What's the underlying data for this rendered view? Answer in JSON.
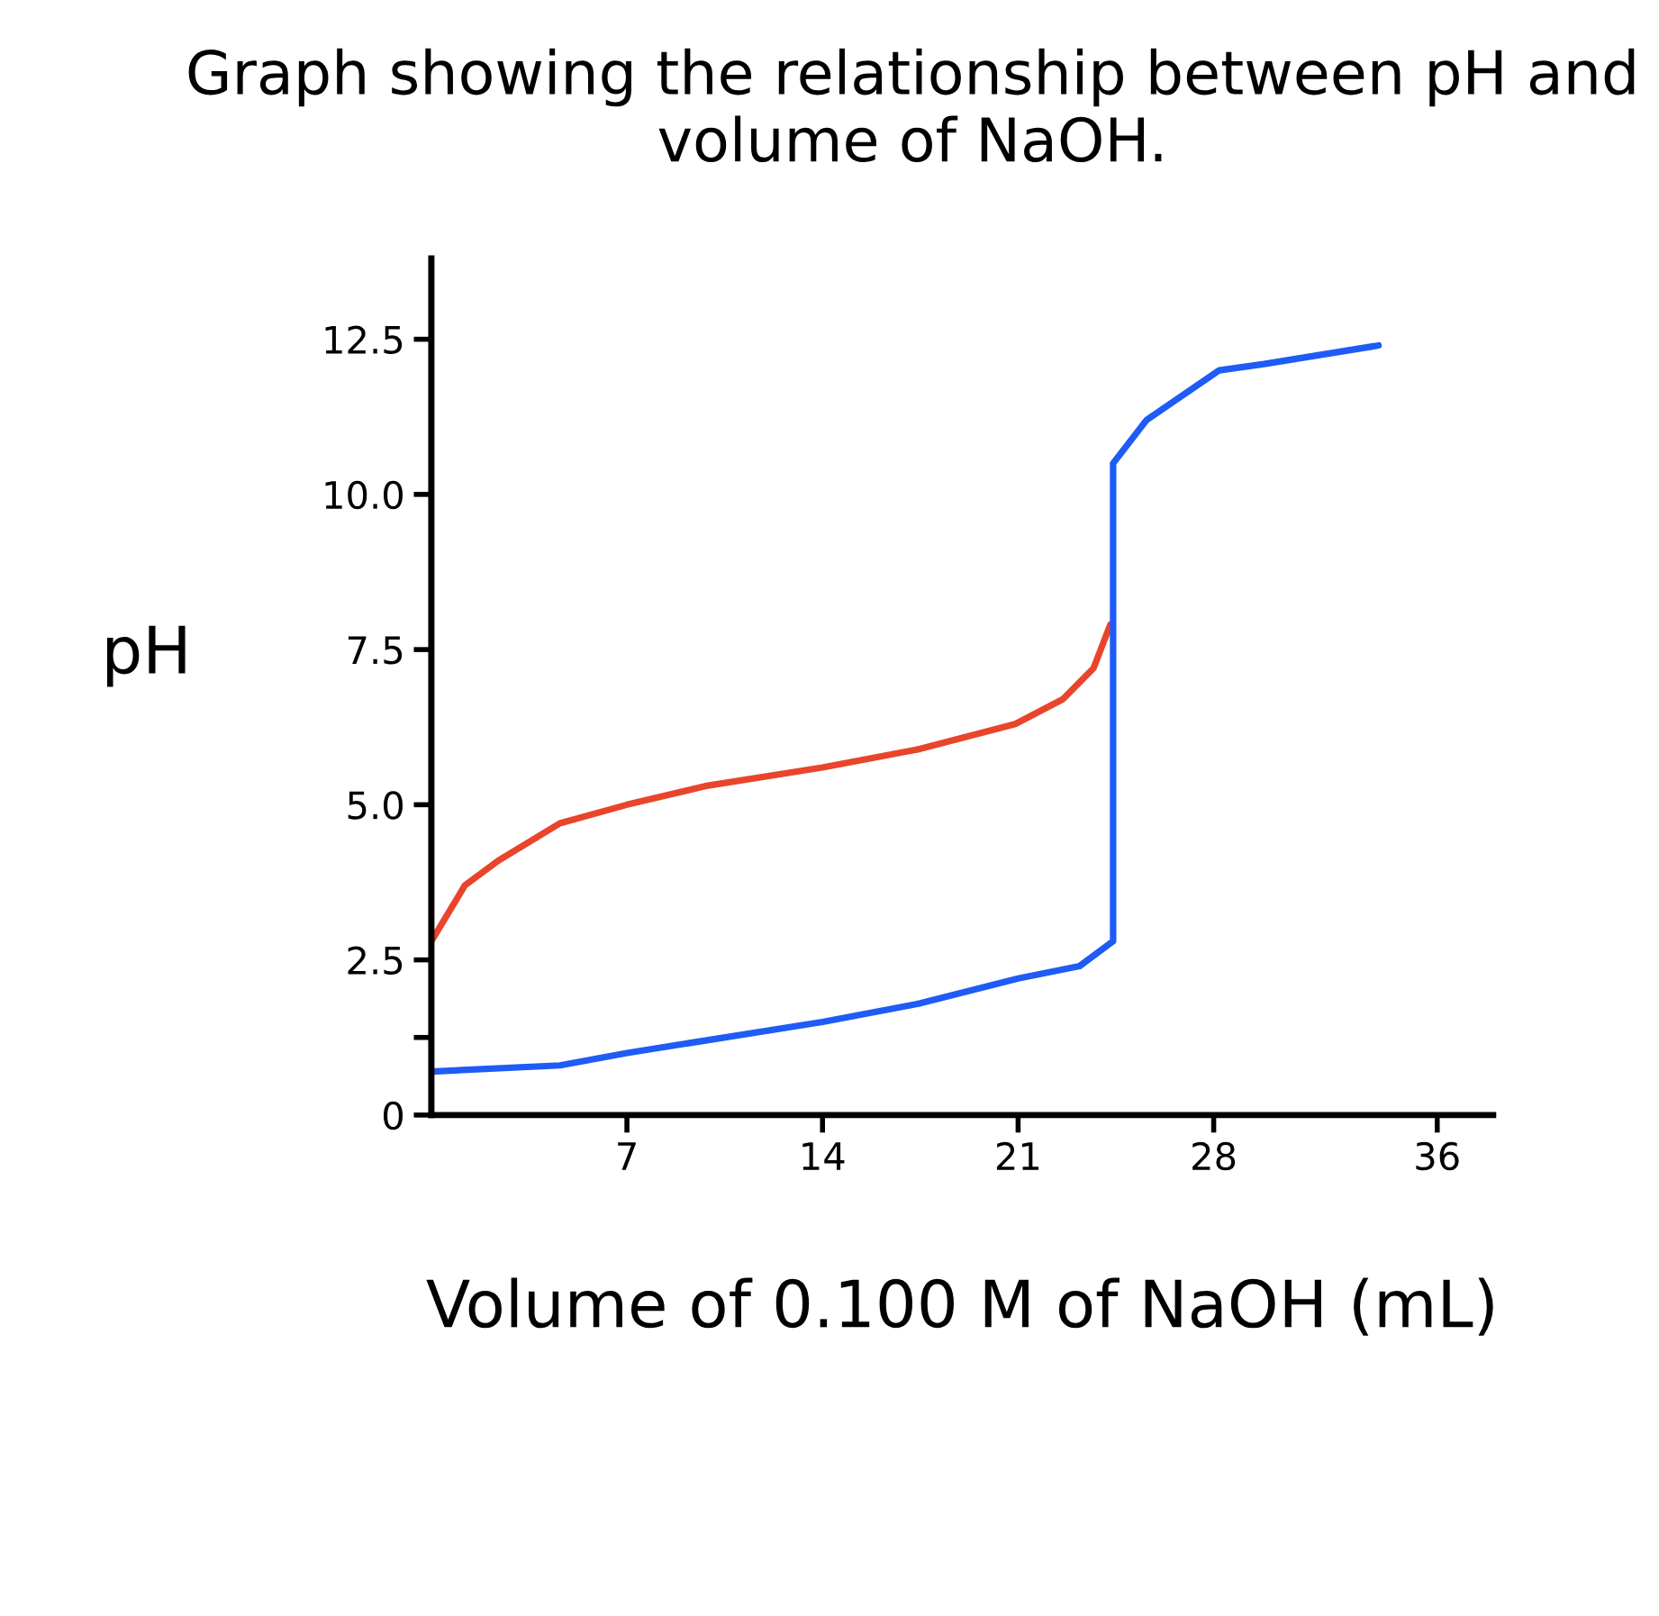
{
  "chart_data": {
    "type": "line",
    "title": "Graph showing the relationship between pH and volume of NaOH.",
    "xlabel": "Volume of 0.100 M of NaOH (mL)",
    "ylabel": "pH",
    "xlim": [
      0,
      38
    ],
    "xticks": [
      7,
      14,
      21,
      28,
      36
    ],
    "ylim": [
      0,
      13.8
    ],
    "yticks": [
      0,
      2.5,
      {
        "value": 1.25,
        "label": null
      },
      {
        "value": 5,
        "label": "5.0"
      },
      7.5,
      {
        "value": 10,
        "label": "10.0"
      },
      12.5
    ],
    "grid": false,
    "legend": false,
    "marker": "none",
    "line_style": "solid",
    "series": [
      {
        "color": "#e8452c",
        "x": [
          0,
          1.2,
          2.4,
          4.6,
          7,
          9.8,
          14,
          17.5,
          20.9,
          22.6,
          23.7,
          24.3
        ],
        "values": [
          2.8,
          3.7,
          4.1,
          4.7,
          5.0,
          5.3,
          5.6,
          5.9,
          6.3,
          6.7,
          7.2,
          7.9
        ]
      },
      {
        "color": "#1f5cf5",
        "x": [
          0,
          4.6,
          7,
          14,
          17.5,
          21,
          23.2,
          24.4,
          24.4,
          25.6,
          28.2,
          29.8,
          33.9
        ],
        "values": [
          0.7,
          0.8,
          1.0,
          1.5,
          1.8,
          2.2,
          2.4,
          2.8,
          10.5,
          11.2,
          12.0,
          12.1,
          12.4
        ]
      }
    ]
  }
}
